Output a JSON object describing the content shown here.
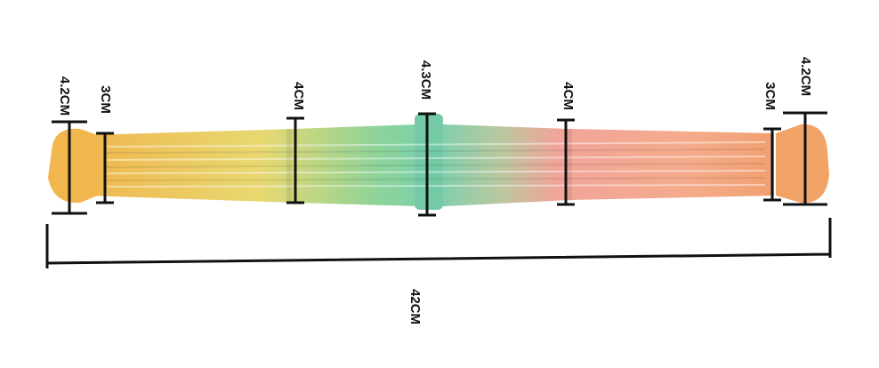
{
  "measurements": [
    {
      "label": "4.2CM"
    },
    {
      "label": "3CM"
    },
    {
      "label": "4CM"
    },
    {
      "label": "4.3CM"
    },
    {
      "label": "4CM"
    },
    {
      "label": "3CM"
    },
    {
      "label": "4.2CM"
    }
  ],
  "total": {
    "label": "42CM"
  }
}
